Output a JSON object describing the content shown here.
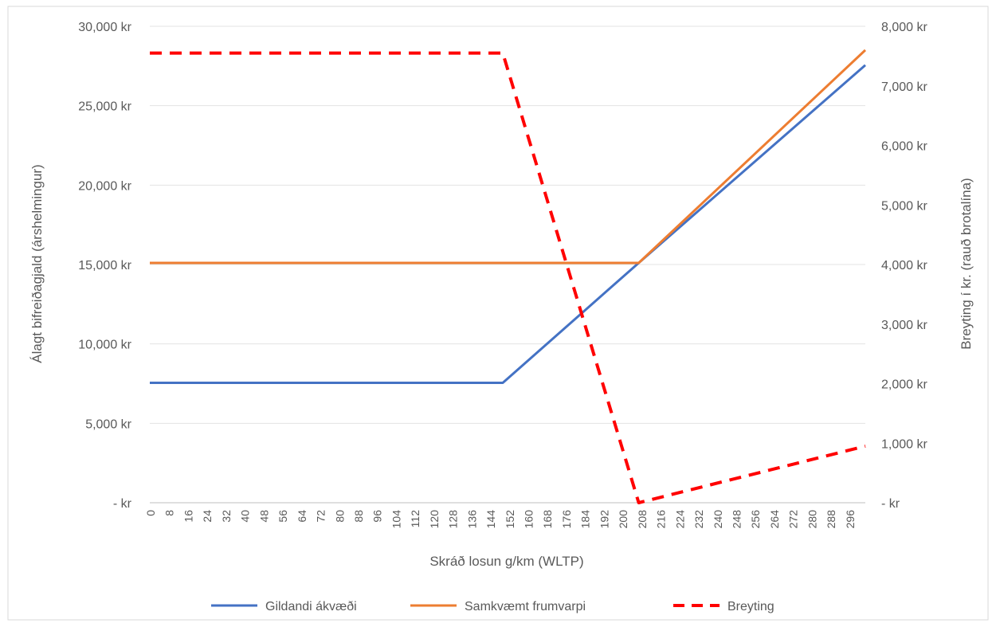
{
  "chart_data": {
    "type": "line",
    "xlabel": "Skráð losun g/km (WLTP)",
    "ylabel_left": "Álagt bifreiðagjald (árshelmingur)",
    "ylabel_right": "Breyting í kr. (rauð brotalína)",
    "x_ticks": [
      "0",
      "8",
      "16",
      "24",
      "32",
      "40",
      "48",
      "56",
      "64",
      "72",
      "80",
      "88",
      "96",
      "104",
      "112",
      "120",
      "128",
      "136",
      "144",
      "152",
      "160",
      "168",
      "176",
      "184",
      "192",
      "200",
      "208",
      "216",
      "224",
      "232",
      "240",
      "248",
      "256",
      "264",
      "272",
      "280",
      "288",
      "296"
    ],
    "xlim": [
      0,
      300
    ],
    "y_left": {
      "lim": [
        0,
        30000
      ],
      "ticks": [
        0,
        5000,
        10000,
        15000,
        20000,
        25000,
        30000
      ],
      "tick_labels": [
        "-   kr",
        "5,000 kr",
        "10,000 kr",
        "15,000 kr",
        "20,000 kr",
        "25,000 kr",
        "30,000 kr"
      ]
    },
    "y_right": {
      "lim": [
        0,
        8000
      ],
      "ticks": [
        0,
        1000,
        2000,
        3000,
        4000,
        5000,
        6000,
        7000,
        8000
      ],
      "tick_labels": [
        "-   kr",
        "1,000 kr",
        "2,000 kr",
        "3,000 kr",
        "4,000 kr",
        "5,000 kr",
        "6,000 kr",
        "7,000 kr",
        "8,000 kr"
      ]
    },
    "grid": true,
    "legend_position": "bottom",
    "series": [
      {
        "name": "Gildandi ákvæði",
        "axis": "left",
        "style": "solid",
        "color": "#4472c4",
        "points": [
          [
            0,
            7550
          ],
          [
            148,
            7550
          ],
          [
            205,
            15100
          ],
          [
            300,
            27550
          ]
        ]
      },
      {
        "name": "Samkvæmt frumvarpi",
        "axis": "left",
        "style": "solid",
        "color": "#ed7d31",
        "points": [
          [
            0,
            15100
          ],
          [
            205,
            15100
          ],
          [
            300,
            28500
          ]
        ]
      },
      {
        "name": "Breyting",
        "axis": "right",
        "style": "dashed",
        "color": "#ff0000",
        "points": [
          [
            0,
            7550
          ],
          [
            148,
            7550
          ],
          [
            205,
            0
          ],
          [
            300,
            950
          ]
        ]
      }
    ]
  }
}
